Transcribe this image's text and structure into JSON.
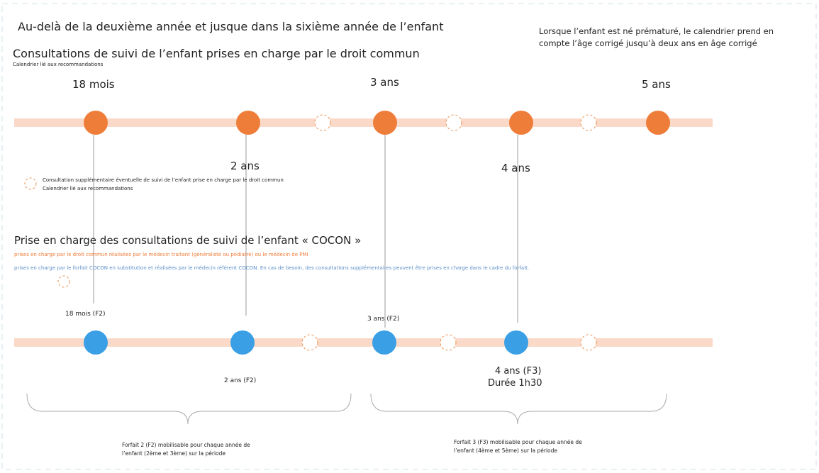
{
  "header": {
    "title": "Au-delà de la deuxième année et jusque dans la sixième année de l’enfant",
    "note": "Lorsque l’enfant est né prématuré, le calendrier prend en compte l’âge corrigé jusqu’à deux ans en âge corrigé"
  },
  "section1": {
    "title": "Consultations de suivi de l’enfant prises en charge par le droit commun",
    "subtitle": "Calendrier lié aux recommandations",
    "labels": [
      "18 mois",
      "2 ans",
      "3 ans",
      "4 ans",
      "5 ans"
    ],
    "legend": {
      "line1": "Consultation supplémentaire éventuelle de suivi de l’enfant prise en charge par le droit commun",
      "line2": "Calendrier lié aux recommandations"
    }
  },
  "section2": {
    "title": "Prise en charge des consultations de suivi de l’enfant « COCON »",
    "orange_note": "prises en charge par le droit commun réalisées par le médecin traitant (généraliste ou pédiatre) ou le médecin de PMI",
    "blue_note": "prises en charge par le forfait COCON en substitution et réalisées par le médecin référent COCON. En cas de besoin, des consultations supplémentaires peuvent être prises en charge dans le cadre du forfait.",
    "labels": [
      "18 mois (F2)",
      "2 ans (F2)",
      "3 ans (F2)",
      "4 ans (F3)"
    ],
    "duration": "Durée 1h30",
    "forfaits": [
      "Forfait 2 (F2) mobilisable pour chaque année de l’enfant (2ème et 3ème) sur la période",
      "Forfait 3 (F3) mobilisable pour chaque année de l’enfant (4ème et 5ème) sur la période"
    ]
  }
}
